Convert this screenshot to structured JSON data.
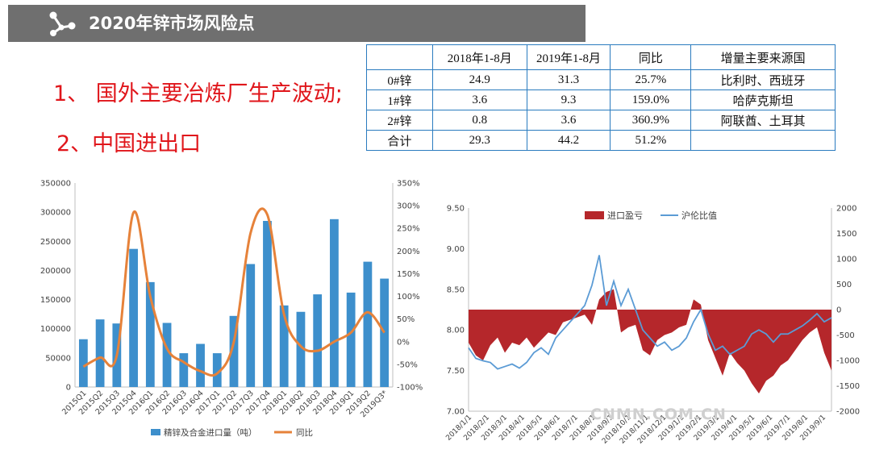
{
  "header": {
    "title": "2020年锌市场风险点"
  },
  "points": [
    "1、 国外主要冶炼厂生产波动;",
    "2、中国进出口"
  ],
  "table": {
    "headers": [
      "",
      "2018年1-8月",
      "2019年1-8月",
      "同比",
      "增量主要来源国"
    ],
    "rows": [
      [
        "0#锌",
        "24.9",
        "31.3",
        "25.7%",
        "比利时、西班牙"
      ],
      [
        "1#锌",
        "3.6",
        "9.3",
        "159.0%",
        "哈萨克斯坦"
      ],
      [
        "2#锌",
        "0.8",
        "3.6",
        "360.9%",
        "阿联酋、土耳其"
      ],
      [
        "合计",
        "29.3",
        "44.2",
        "51.2%",
        ""
      ]
    ]
  },
  "watermark": "CNMN.COM.CN",
  "colors": {
    "bar": "#3d8fcc",
    "yoy": "#e6823a",
    "loss": "#b5272b",
    "ratio": "#5b9bd5",
    "tableBorder": "#2a7bbf"
  },
  "chart_data": [
    {
      "type": "bar",
      "categories": [
        "2015Q1",
        "2015Q2",
        "2015Q3",
        "2015Q4",
        "2016Q1",
        "2016Q2",
        "2016Q3",
        "2016Q4",
        "2017Q1",
        "2017Q2",
        "2017Q3",
        "2017Q4",
        "2018Q1",
        "2018Q2",
        "2018Q3",
        "2018Q4",
        "2019Q1",
        "2019Q2",
        "2019Q3*"
      ],
      "series": [
        {
          "name": "精锌及合金进口量（吨）",
          "type": "bar",
          "axis": "left",
          "values": [
            82000,
            116000,
            109000,
            237000,
            180000,
            110000,
            58000,
            74000,
            58000,
            122000,
            211000,
            285000,
            140000,
            129000,
            159000,
            288000,
            162000,
            215000,
            186000
          ]
        },
        {
          "name": "同比",
          "type": "line",
          "axis": "right",
          "unit": "%",
          "values": [
            -55,
            -35,
            -30,
            285,
            100,
            -15,
            -45,
            -65,
            -70,
            0,
            240,
            280,
            60,
            -10,
            -20,
            0,
            20,
            65,
            20
          ]
        }
      ],
      "yleft": {
        "min": 0,
        "max": 350000,
        "step": 50000,
        "ticks": [
          "0",
          "50000",
          "100000",
          "150000",
          "200000",
          "250000",
          "300000",
          "350000"
        ]
      },
      "yright": {
        "min": -100,
        "max": 350,
        "step": 50,
        "ticks": [
          "-100%",
          "-50%",
          "0%",
          "50%",
          "100%",
          "150%",
          "200%",
          "250%",
          "300%",
          "350%"
        ]
      },
      "legend": [
        "精锌及合金进口量（吨）",
        "同比"
      ],
      "legend_position": "bottom"
    },
    {
      "type": "area+line",
      "x_ticks": [
        "2018/1/1",
        "2018/2/1",
        "2018/3/1",
        "2018/4/1",
        "2018/5/1",
        "2018/6/1",
        "2018/7/1",
        "2018/8/1",
        "2018/9/1",
        "2018/10/1",
        "2018/11/1",
        "2018/12/1",
        "2019/1/1",
        "2019/2/1",
        "2019/3/1",
        "2019/4/1",
        "2019/5/1",
        "2019/6/1",
        "2019/7/1",
        "2019/8/1",
        "2019/9/1"
      ],
      "series": [
        {
          "name": "进口盈亏",
          "type": "area",
          "axis": "right",
          "values": [
            -650,
            -900,
            -1000,
            -700,
            -550,
            -850,
            -650,
            -700,
            -550,
            -750,
            -600,
            -450,
            -500,
            -250,
            -200,
            -150,
            -100,
            -300,
            200,
            350,
            400,
            -450,
            -350,
            -300,
            -800,
            -900,
            -600,
            -500,
            -450,
            -350,
            -300,
            200,
            100,
            -600,
            -950,
            -1300,
            -850,
            -1050,
            -1200,
            -1450,
            -1650,
            -1400,
            -1300,
            -1100,
            -1000,
            -800,
            -600,
            -450,
            -350,
            -850,
            -1200
          ]
        },
        {
          "name": "沪伦比值",
          "type": "line",
          "axis": "left",
          "values": [
            7.78,
            7.65,
            7.62,
            7.6,
            7.52,
            7.55,
            7.58,
            7.53,
            7.6,
            7.72,
            7.78,
            7.7,
            7.9,
            8.0,
            8.1,
            8.2,
            8.3,
            8.55,
            8.92,
            8.3,
            8.6,
            8.3,
            8.5,
            8.25,
            8.0,
            7.9,
            7.8,
            7.85,
            7.75,
            7.8,
            7.9,
            8.1,
            8.25,
            7.95,
            7.75,
            7.8,
            7.7,
            7.75,
            7.8,
            7.95,
            8.0,
            7.95,
            7.85,
            7.95,
            7.95,
            8.0,
            8.05,
            8.12,
            8.2,
            8.1,
            8.15
          ]
        }
      ],
      "yleft": {
        "min": 7.0,
        "max": 9.5,
        "step": 0.5,
        "ticks": [
          "7.00",
          "7.50",
          "8.00",
          "8.50",
          "9.00",
          "9.50"
        ]
      },
      "yright": {
        "min": -2000,
        "max": 2000,
        "step": 500,
        "ticks": [
          "-2000",
          "-1500",
          "-1000",
          "-500",
          "0",
          "500",
          "1000",
          "1500",
          "2000"
        ]
      },
      "legend": [
        "进口盈亏",
        "沪伦比值"
      ],
      "legend_position": "top"
    }
  ]
}
